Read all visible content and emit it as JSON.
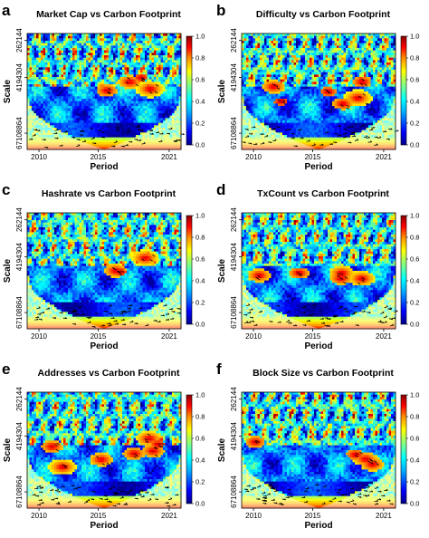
{
  "chart_data": [
    {
      "type": "heatmap",
      "panel": "a",
      "title": "Market Cap vs Carbon Footprint",
      "xlabel": "Period",
      "ylabel": "Scale",
      "x_ticks": [
        "2010",
        "2015",
        "2021"
      ],
      "y_ticks": [
        "262144",
        "4194304",
        "67108864"
      ],
      "colorbar_ticks": [
        "0.0",
        "0.2",
        "0.4",
        "0.6",
        "0.8",
        "1.0"
      ],
      "xlim": [
        2009,
        2022
      ],
      "zlim": [
        0,
        1
      ],
      "colormap": [
        "#00008b",
        "#0000ff",
        "#00bfff",
        "#00ffff",
        "#7fff7f",
        "#ffff00",
        "#ff7f00",
        "#ff0000",
        "#8b0000"
      ],
      "cone_of_influence": true,
      "phase_arrows": true
    },
    {
      "type": "heatmap",
      "panel": "b",
      "title": "Difficulty vs Carbon Footprint",
      "xlabel": "Period",
      "ylabel": "Scale",
      "x_ticks": [
        "2010",
        "2015",
        "2021"
      ],
      "y_ticks": [
        "262144",
        "4194304",
        "67108864"
      ],
      "colorbar_ticks": [
        "0.0",
        "0.2",
        "0.4",
        "0.6",
        "0.8",
        "1.0"
      ],
      "xlim": [
        2009,
        2022
      ],
      "zlim": [
        0,
        1
      ],
      "cone_of_influence": true,
      "phase_arrows": true
    },
    {
      "type": "heatmap",
      "panel": "c",
      "title": "Hashrate vs Carbon Footprint",
      "xlabel": "Period",
      "ylabel": "Scale",
      "x_ticks": [
        "2010",
        "2015",
        "2021"
      ],
      "y_ticks": [
        "262144",
        "4194304",
        "67108864"
      ],
      "colorbar_ticks": [
        "0.0",
        "0.2",
        "0.4",
        "0.6",
        "0.8",
        "1.0"
      ],
      "xlim": [
        2009,
        2022
      ],
      "zlim": [
        0,
        1
      ],
      "cone_of_influence": true,
      "phase_arrows": true
    },
    {
      "type": "heatmap",
      "panel": "d",
      "title": "TxCount vs Carbon Footprint",
      "xlabel": "Period",
      "ylabel": "Scale",
      "x_ticks": [
        "2010",
        "2015",
        "2021"
      ],
      "y_ticks": [
        "262144",
        "4194304",
        "67108864"
      ],
      "colorbar_ticks": [
        "0.0",
        "0.2",
        "0.4",
        "0.6",
        "0.8",
        "1.0"
      ],
      "xlim": [
        2009,
        2022
      ],
      "zlim": [
        0,
        1
      ],
      "cone_of_influence": true,
      "phase_arrows": true
    },
    {
      "type": "heatmap",
      "panel": "e",
      "title": "Addresses vs Carbon Footprint",
      "xlabel": "Period",
      "ylabel": "Scale",
      "x_ticks": [
        "2010",
        "2015",
        "2021"
      ],
      "y_ticks": [
        "262144",
        "4194304",
        "67108864"
      ],
      "colorbar_ticks": [
        "0.0",
        "0.2",
        "0.4",
        "0.6",
        "0.8",
        "1.0"
      ],
      "xlim": [
        2009,
        2022
      ],
      "zlim": [
        0,
        1
      ],
      "cone_of_influence": true,
      "phase_arrows": true
    },
    {
      "type": "heatmap",
      "panel": "f",
      "title": "Block Size vs Carbon Footprint",
      "xlabel": "Period",
      "ylabel": "Scale",
      "x_ticks": [
        "2010",
        "2015",
        "2021"
      ],
      "y_ticks": [
        "262144",
        "4194304",
        "67108864"
      ],
      "colorbar_ticks": [
        "0.0",
        "0.2",
        "0.4",
        "0.6",
        "0.8",
        "1.0"
      ],
      "xlim": [
        2009,
        2022
      ],
      "zlim": [
        0,
        1
      ],
      "cone_of_influence": true,
      "phase_arrows": true
    }
  ]
}
